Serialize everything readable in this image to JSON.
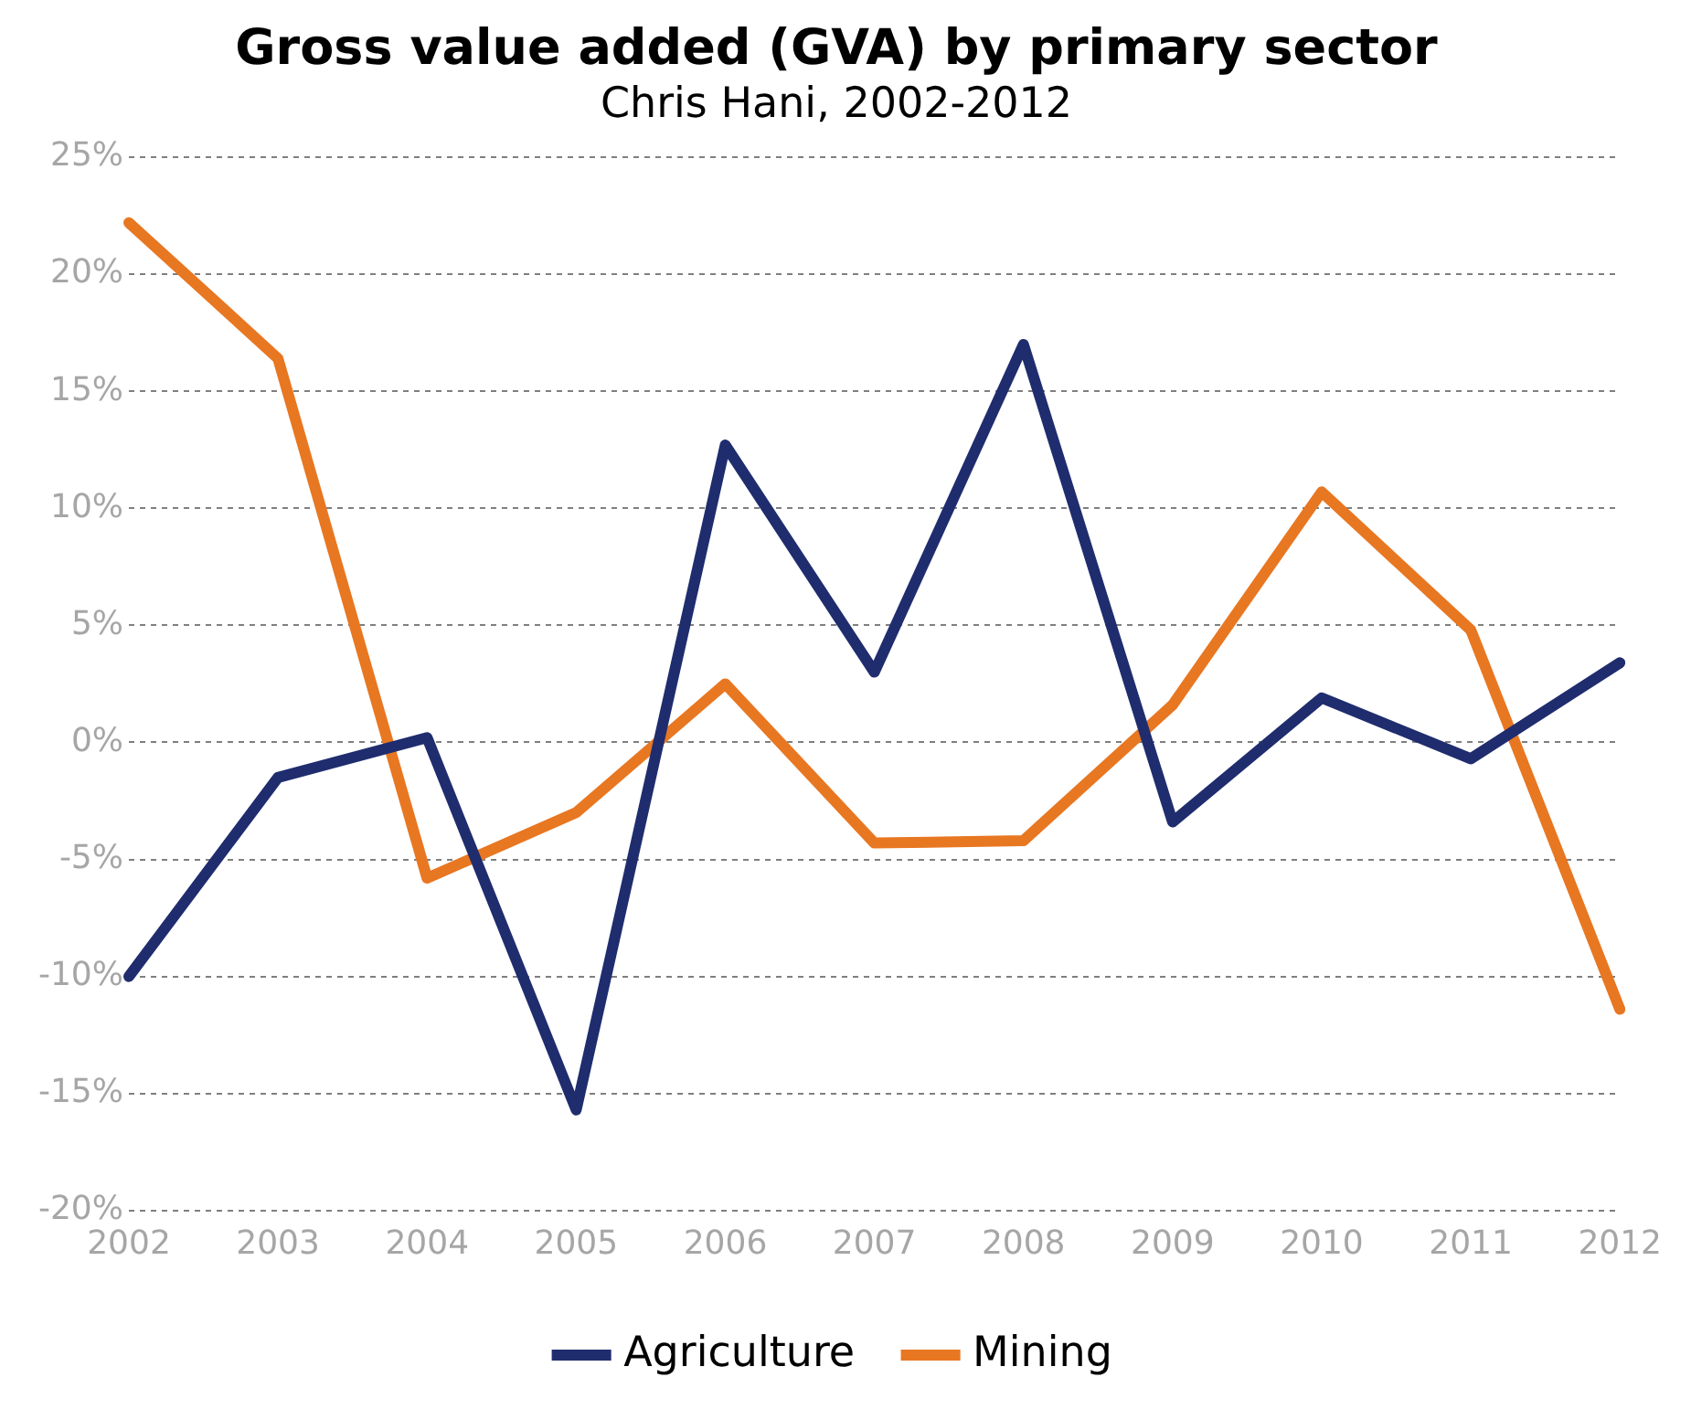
{
  "chart_data": {
    "type": "line",
    "title": "Gross value added (GVA) by primary sector",
    "subtitle": "Chris Hani, 2002-2012",
    "categories": [
      "2002",
      "2003",
      "2004",
      "2005",
      "2006",
      "2007",
      "2008",
      "2009",
      "2010",
      "2011",
      "2012"
    ],
    "series": [
      {
        "name": "Agriculture",
        "color": "#1f2d6e",
        "values": [
          -10,
          -1.5,
          0.2,
          -15.7,
          12.7,
          3.0,
          17.0,
          -3.4,
          1.9,
          -0.7,
          3.4
        ]
      },
      {
        "name": "Mining",
        "color": "#e87722",
        "values": [
          22.2,
          16.4,
          -5.8,
          -3.0,
          2.5,
          -4.3,
          -4.2,
          1.6,
          10.7,
          4.8,
          -11.4
        ]
      }
    ],
    "ylim": [
      -20,
      25
    ],
    "yticks": [
      {
        "value": -20,
        "label": "-20%"
      },
      {
        "value": -15,
        "label": "-15%"
      },
      {
        "value": -10,
        "label": "-10%"
      },
      {
        "value": -5,
        "label": "-5%"
      },
      {
        "value": 0,
        "label": "0%"
      },
      {
        "value": 5,
        "label": "5%"
      },
      {
        "value": 10,
        "label": "10%"
      },
      {
        "value": 15,
        "label": "15%"
      },
      {
        "value": 20,
        "label": "20%"
      },
      {
        "value": 25,
        "label": "25%"
      }
    ],
    "grid": "y",
    "legend": "bottom",
    "marker": "none",
    "line_style": "solid"
  }
}
